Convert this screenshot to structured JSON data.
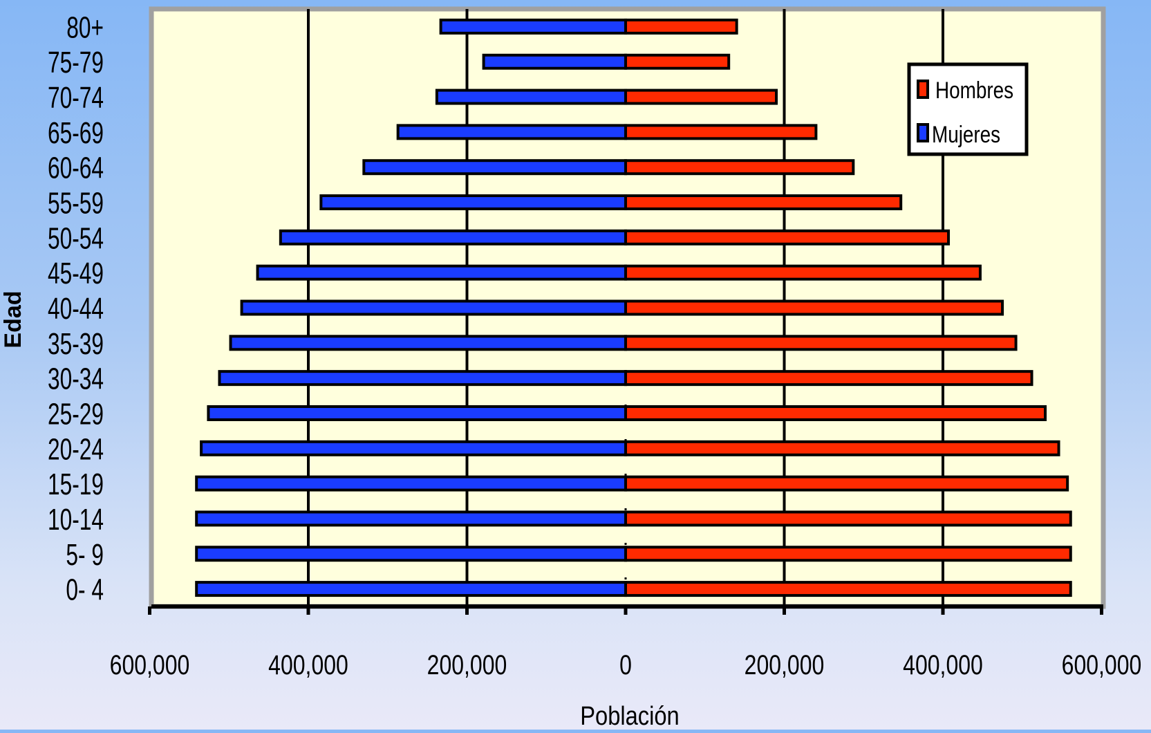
{
  "chart_data": {
    "type": "bar",
    "orientation": "horizontal",
    "layout": "population-pyramid",
    "categories": [
      "80+",
      "75-79",
      "70-74",
      "65-69",
      "60-64",
      "55-59",
      "50-54",
      "45-49",
      "40-44",
      "35-39",
      "30-34",
      "25-29",
      "20-24",
      "15-19",
      "10-14",
      "5- 9",
      "0- 4"
    ],
    "series": [
      {
        "name": "Hombres",
        "side": "right",
        "color": "#ff2a00",
        "values": [
          140000,
          130000,
          190000,
          240000,
          287000,
          347000,
          407000,
          447000,
          475000,
          492000,
          512000,
          529000,
          546000,
          557000,
          561000,
          561000,
          561000
        ]
      },
      {
        "name": "Mujeres",
        "side": "left",
        "color": "#1a3cff",
        "values": [
          233000,
          179000,
          238000,
          287000,
          330000,
          384000,
          435000,
          464000,
          484000,
          498000,
          512000,
          526000,
          535000,
          541000,
          541000,
          541000,
          541000
        ]
      }
    ],
    "xlim": [
      -600000,
      600000
    ],
    "xticks": [
      -600000,
      -400000,
      -200000,
      0,
      200000,
      400000,
      600000
    ],
    "xtick_labels": [
      "600,000",
      "400,000",
      "200,000",
      "0",
      "200,000",
      "400,000",
      "600,000"
    ],
    "xlabel": "Población",
    "ylabel": "Edad",
    "grid": "vertical major gridlines",
    "legend_position": "top-right",
    "plot_background": "#ffffdd",
    "frame_color": "#a0a0a0"
  }
}
